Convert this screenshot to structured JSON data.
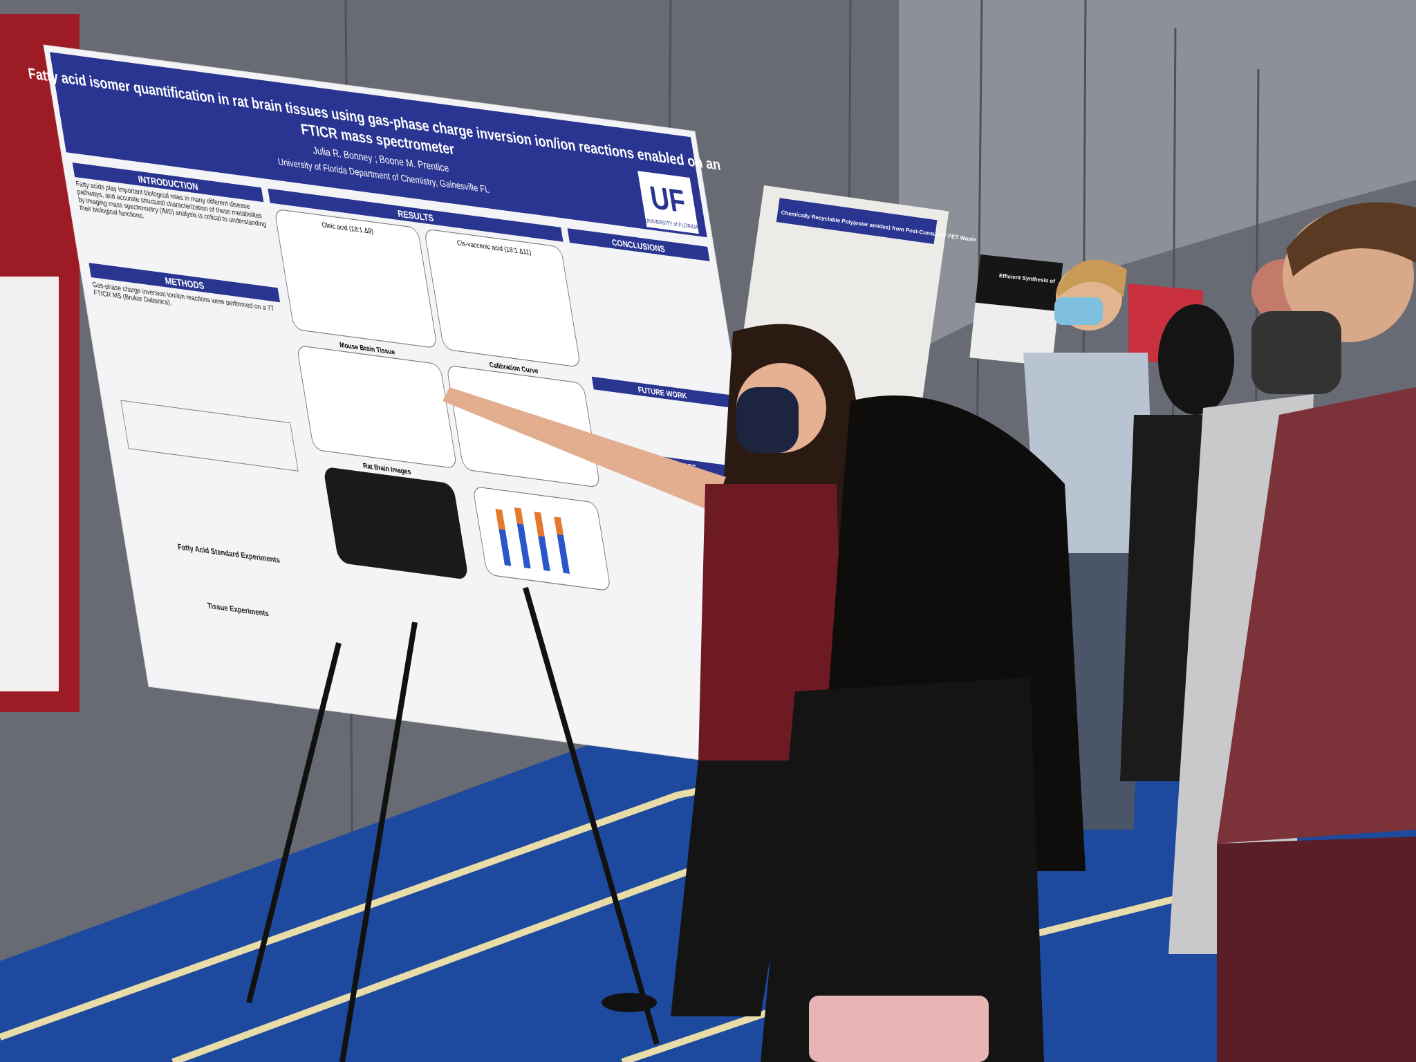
{
  "scene": {
    "description_colors": {
      "wall": "#6b6e76",
      "carpet": "#1f4fa8",
      "poster_blue": "#2a3591",
      "uf_orange": "#fa4616"
    }
  },
  "main_poster": {
    "title_line1": "Fatty acid isomer quantification in rat brain tissues using gas-phase charge inversion ion/ion reactions enabled on an",
    "title_line2": "FTICR mass spectrometer",
    "authors": "Julia R. Bonney ; Boone M. Prentice",
    "affiliation": "University of Florida Department of Chemistry, Gainesville FL",
    "logo_text": "UF",
    "logo_sub": "UNIVERSITY of FLORIDA",
    "sections": {
      "introduction": "INTRODUCTION",
      "methods": "METHODS",
      "results": "RESULTS",
      "conclusions": "CONCLUSIONS",
      "future_work": "FUTURE WORK",
      "references": "REFERENCES"
    },
    "panels": {
      "oleic": "Oleic acid (18:1 Δ9)",
      "vaccenic": "Cis-vaccenic acid (18:1 Δ11)",
      "mouse": "Mouse Brain Tissue",
      "calibration": "Calibration Curve",
      "rat": "Rat Brain Images",
      "standard": "Fatty Acid Standard Experiments",
      "tissue": "Tissue Experiments"
    },
    "intro_text": "Fatty acids play important biological roles in many different disease pathways, and accurate structural characterization of these metabolites by imaging mass spectrometry (IMS) analysis is critical to understanding their biological functions.",
    "methods_text": "Gas-phase charge inversion ion/ion reactions were performed on a 7T FTICR MS (Bruker Daltonics)."
  },
  "second_poster": {
    "title": "Chemically Recyclable Poly(ester amides) from Post-Consumer PET Waste"
  },
  "third_poster": {
    "title": "Efficient Synthesis of"
  }
}
